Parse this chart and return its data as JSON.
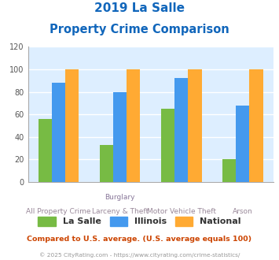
{
  "title_line1": "2019 La Salle",
  "title_line2": "Property Crime Comparison",
  "cat_labels_top": [
    "",
    "Burglary",
    "",
    ""
  ],
  "cat_labels_bottom": [
    "All Property Crime",
    "Larceny & Theft",
    "Motor Vehicle Theft",
    "Arson"
  ],
  "lasalle": [
    56,
    33,
    65,
    20
  ],
  "illinois": [
    88,
    80,
    92,
    68
  ],
  "national": [
    100,
    100,
    100,
    100
  ],
  "lasalle_color": "#77bb44",
  "illinois_color": "#4499ee",
  "national_color": "#ffaa33",
  "ylim": [
    0,
    120
  ],
  "yticks": [
    0,
    20,
    40,
    60,
    80,
    100,
    120
  ],
  "bg_color": "#ddeeff",
  "footnote1": "Compared to U.S. average. (U.S. average equals 100)",
  "footnote2": "© 2025 CityRating.com - https://www.cityrating.com/crime-statistics/",
  "title_color": "#1166bb",
  "footnote1_color": "#cc4400",
  "footnote2_color": "#999999",
  "xlabel_top_color": "#887799",
  "xlabel_bottom_color": "#998899",
  "legend_labels": [
    "La Salle",
    "Illinois",
    "National"
  ]
}
